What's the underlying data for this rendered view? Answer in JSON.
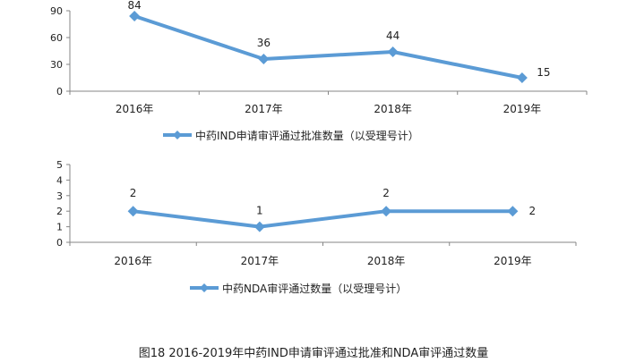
{
  "figure": {
    "caption": "图18 2016-2019年中药IND申请审评通过批准和NDA审评通过数量",
    "line_color": "#5B9BD5"
  },
  "chart_data": [
    {
      "type": "line",
      "categories": [
        "2016年",
        "2017年",
        "2018年",
        "2019年"
      ],
      "series": [
        {
          "name": "中药IND申请审评通过批准数量（以受理号计）",
          "values": [
            84,
            36,
            44,
            15
          ]
        }
      ],
      "ylim": [
        0,
        90
      ],
      "yticks": [
        0,
        30,
        60,
        90
      ],
      "data_labels": true,
      "legend": "bottom",
      "grid": false
    },
    {
      "type": "line",
      "categories": [
        "2016年",
        "2017年",
        "2018年",
        "2019年"
      ],
      "series": [
        {
          "name": "中药NDA审评通过数量（以受理号计）",
          "values": [
            2,
            1,
            2,
            2
          ]
        }
      ],
      "ylim": [
        0,
        5
      ],
      "yticks": [
        0,
        1,
        2,
        3,
        4,
        5
      ],
      "data_labels": true,
      "legend": "bottom",
      "grid": false
    }
  ]
}
